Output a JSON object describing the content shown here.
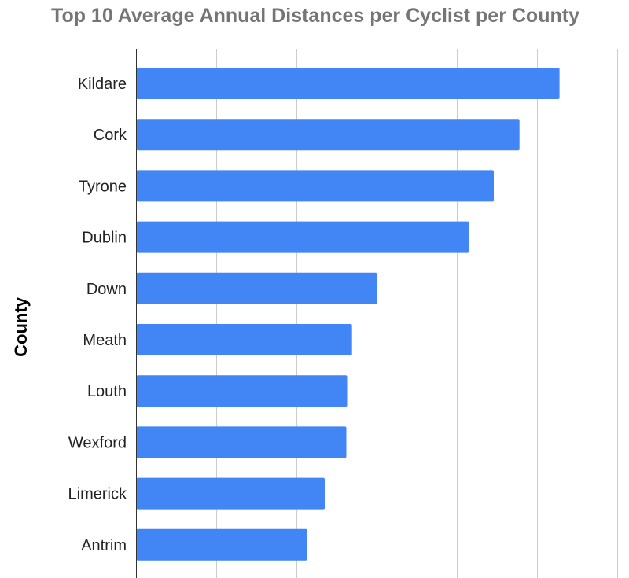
{
  "chart_data": {
    "type": "bar",
    "orientation": "horizontal",
    "title": "Top 10 Average Annual Distances per Cyclist per County",
    "xlabel": "",
    "ylabel": "County",
    "categories": [
      "Kildare",
      "Cork",
      "Tyrone",
      "Dublin",
      "Down",
      "Meath",
      "Louth",
      "Wexford",
      "Limerick",
      "Antrim"
    ],
    "values": [
      5.28,
      4.78,
      4.46,
      4.15,
      3.0,
      2.69,
      2.63,
      2.62,
      2.35,
      2.13
    ],
    "xlim": [
      0,
      6
    ],
    "x_gridlines": [
      0,
      1,
      2,
      3,
      4,
      5,
      6
    ],
    "grid": true,
    "legend": "none",
    "bar_color": "#4285f4"
  }
}
